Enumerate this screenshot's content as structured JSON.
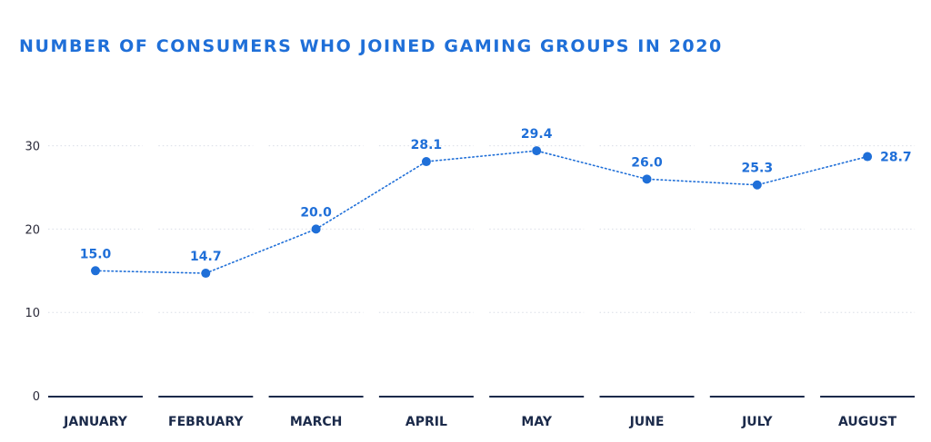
{
  "chart_data": {
    "type": "line",
    "title": "NUMBER OF CONSUMERS WHO JOINED GAMING GROUPS IN 2020",
    "xlabel": "",
    "ylabel": "",
    "categories": [
      "JANUARY",
      "FEBRUARY",
      "MARCH",
      "APRIL",
      "MAY",
      "JUNE",
      "JULY",
      "AUGUST"
    ],
    "series": [
      {
        "values": [
          15.0,
          14.7,
          20.0,
          28.1,
          29.4,
          26.0,
          25.3,
          28.7
        ],
        "labels": [
          "15.0",
          "14.7",
          "20.0",
          "28.1",
          "29.4",
          "26.0",
          "25.3",
          "28.7"
        ]
      }
    ],
    "yticks": [
      0,
      10,
      20,
      30
    ],
    "ytick_labels": [
      "0",
      "10",
      "20",
      "30"
    ],
    "ylim": [
      0,
      30
    ],
    "grid": true,
    "line_style": "dotted",
    "line_color": "#1f6fd8",
    "title_color": "#1f6fd8",
    "axis_color": "#1b2a4a"
  }
}
